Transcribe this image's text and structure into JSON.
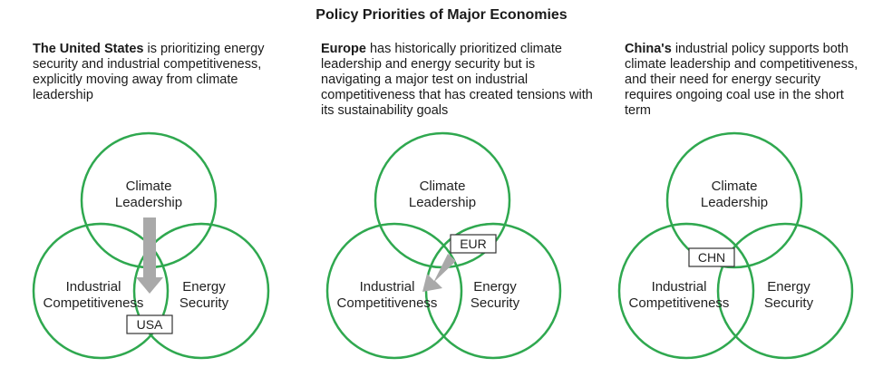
{
  "title": "Policy Priorities of Major Economies",
  "colors": {
    "circle": "#2fa84f",
    "overlap": "#9fd6ab",
    "arrow": "#a9a9a9"
  },
  "panels": [
    {
      "subject": "The United States",
      "desc": " is prioritizing energy security and industrial competitiveness, explicitly moving away from climate leadership",
      "circles": {
        "top": [
          "Climate",
          "Leadership"
        ],
        "left": [
          "Industrial",
          "Competitiveness"
        ],
        "right": [
          "Energy",
          "Security"
        ]
      },
      "tag": "USA"
    },
    {
      "subject": "Europe",
      "desc": " has historically prioritized climate leadership and energy security but is navigating a major test on industrial competitiveness that has created tensions with its sustainability goals",
      "circles": {
        "top": [
          "Climate",
          "Leadership"
        ],
        "left": [
          "Industrial",
          "Competitiveness"
        ],
        "right": [
          "Energy",
          "Security"
        ]
      },
      "tag": "EUR"
    },
    {
      "subject": "China's",
      "desc": " industrial policy supports both climate leadership and competitiveness, and their need for energy security requires ongoing coal use in the short term",
      "circles": {
        "top": [
          "Climate",
          "Leadership"
        ],
        "left": [
          "Industrial",
          "Competitiveness"
        ],
        "right": [
          "Energy",
          "Security"
        ]
      },
      "tag": "CHN"
    }
  ]
}
